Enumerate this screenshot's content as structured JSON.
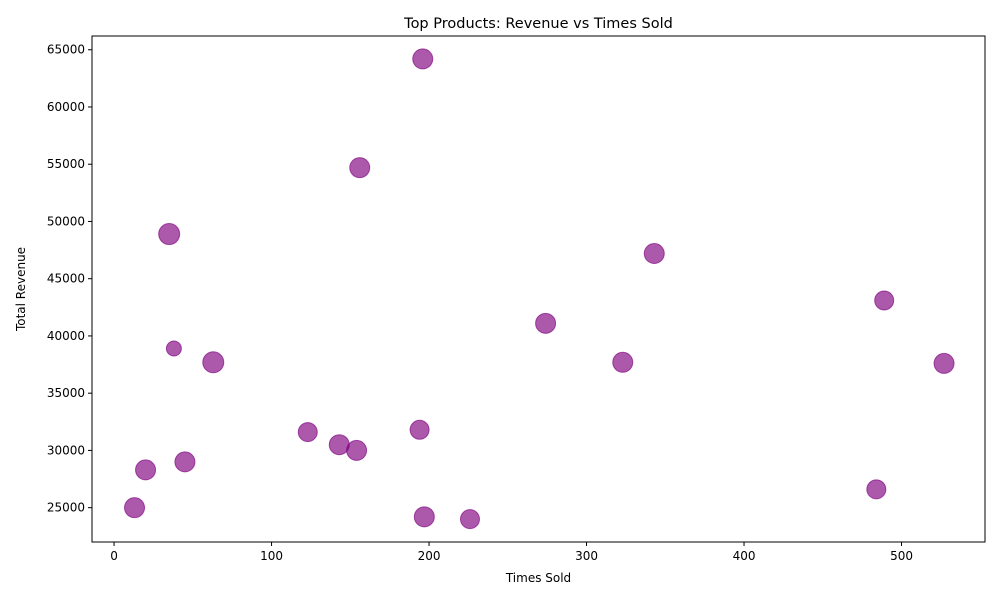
{
  "chart_data": {
    "type": "scatter",
    "title": "Top Products: Revenue vs Times Sold",
    "xlabel": "Times Sold",
    "ylabel": "Total Revenue",
    "xlim": [
      -14,
      553
    ],
    "ylim": [
      22000,
      66200
    ],
    "xticks": [
      0,
      100,
      200,
      300,
      400,
      500
    ],
    "yticks": [
      25000,
      30000,
      35000,
      40000,
      45000,
      50000,
      55000,
      60000,
      65000
    ],
    "grid": false,
    "marker_color": "#800080",
    "marker_alpha": 0.65,
    "points": [
      {
        "x": 196,
        "y": 64200,
        "size": 10
      },
      {
        "x": 156,
        "y": 54700,
        "size": 10
      },
      {
        "x": 35,
        "y": 48900,
        "size": 10.5
      },
      {
        "x": 343,
        "y": 47200,
        "size": 10
      },
      {
        "x": 489,
        "y": 43100,
        "size": 9.5
      },
      {
        "x": 274,
        "y": 41100,
        "size": 10
      },
      {
        "x": 38,
        "y": 38900,
        "size": 7.5
      },
      {
        "x": 63,
        "y": 37700,
        "size": 10.5
      },
      {
        "x": 323,
        "y": 37700,
        "size": 10
      },
      {
        "x": 527,
        "y": 37600,
        "size": 10
      },
      {
        "x": 194,
        "y": 31800,
        "size": 9.5
      },
      {
        "x": 123,
        "y": 31600,
        "size": 9.5
      },
      {
        "x": 143,
        "y": 30500,
        "size": 10
      },
      {
        "x": 154,
        "y": 30000,
        "size": 10
      },
      {
        "x": 45,
        "y": 29000,
        "size": 10
      },
      {
        "x": 20,
        "y": 28300,
        "size": 10
      },
      {
        "x": 484,
        "y": 26600,
        "size": 9.5
      },
      {
        "x": 13,
        "y": 25000,
        "size": 10
      },
      {
        "x": 197,
        "y": 24200,
        "size": 10
      },
      {
        "x": 226,
        "y": 24000,
        "size": 9.5
      }
    ]
  }
}
